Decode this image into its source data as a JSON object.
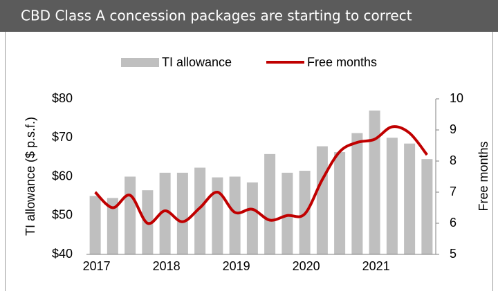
{
  "chart_data": {
    "type": "bar-line",
    "title": "CBD Class A concession packages are starting to correct",
    "ylabel": "TI allowance ($ p.s.f.)",
    "y2label": "Free months",
    "categories": [
      "2017",
      null,
      null,
      null,
      "2018",
      null,
      null,
      null,
      "2019",
      null,
      null,
      null,
      "2020",
      null,
      null,
      null,
      "2021",
      null,
      null,
      null
    ],
    "series": [
      {
        "name": "TI allowance",
        "type": "bar",
        "color": "#bfbfbf",
        "values": [
          55,
          54.5,
          60,
          56.5,
          61,
          61,
          62.3,
          59.8,
          60,
          58.5,
          65.8,
          61,
          61.5,
          67.8,
          66.3,
          71.2,
          77,
          70,
          68.5,
          64.5
        ]
      },
      {
        "name": "Free months",
        "type": "line",
        "color": "#c00000",
        "axis": "y2",
        "values": [
          7.0,
          6.5,
          6.9,
          6.0,
          6.4,
          6.05,
          6.5,
          7.0,
          6.35,
          6.45,
          6.1,
          6.25,
          6.3,
          7.4,
          8.3,
          8.6,
          8.7,
          9.1,
          8.9,
          8.2
        ]
      }
    ],
    "ylim": [
      40,
      80
    ],
    "yticks": [
      {
        "value": 40,
        "label": "$40"
      },
      {
        "value": 50,
        "label": "$50"
      },
      {
        "value": 60,
        "label": "$60"
      },
      {
        "value": 70,
        "label": "$70"
      },
      {
        "value": 80,
        "label": "$80"
      }
    ],
    "y2lim": [
      5,
      10
    ],
    "y2ticks": [
      5,
      6,
      7,
      8,
      9,
      10
    ],
    "grid": false,
    "legend": "top"
  }
}
